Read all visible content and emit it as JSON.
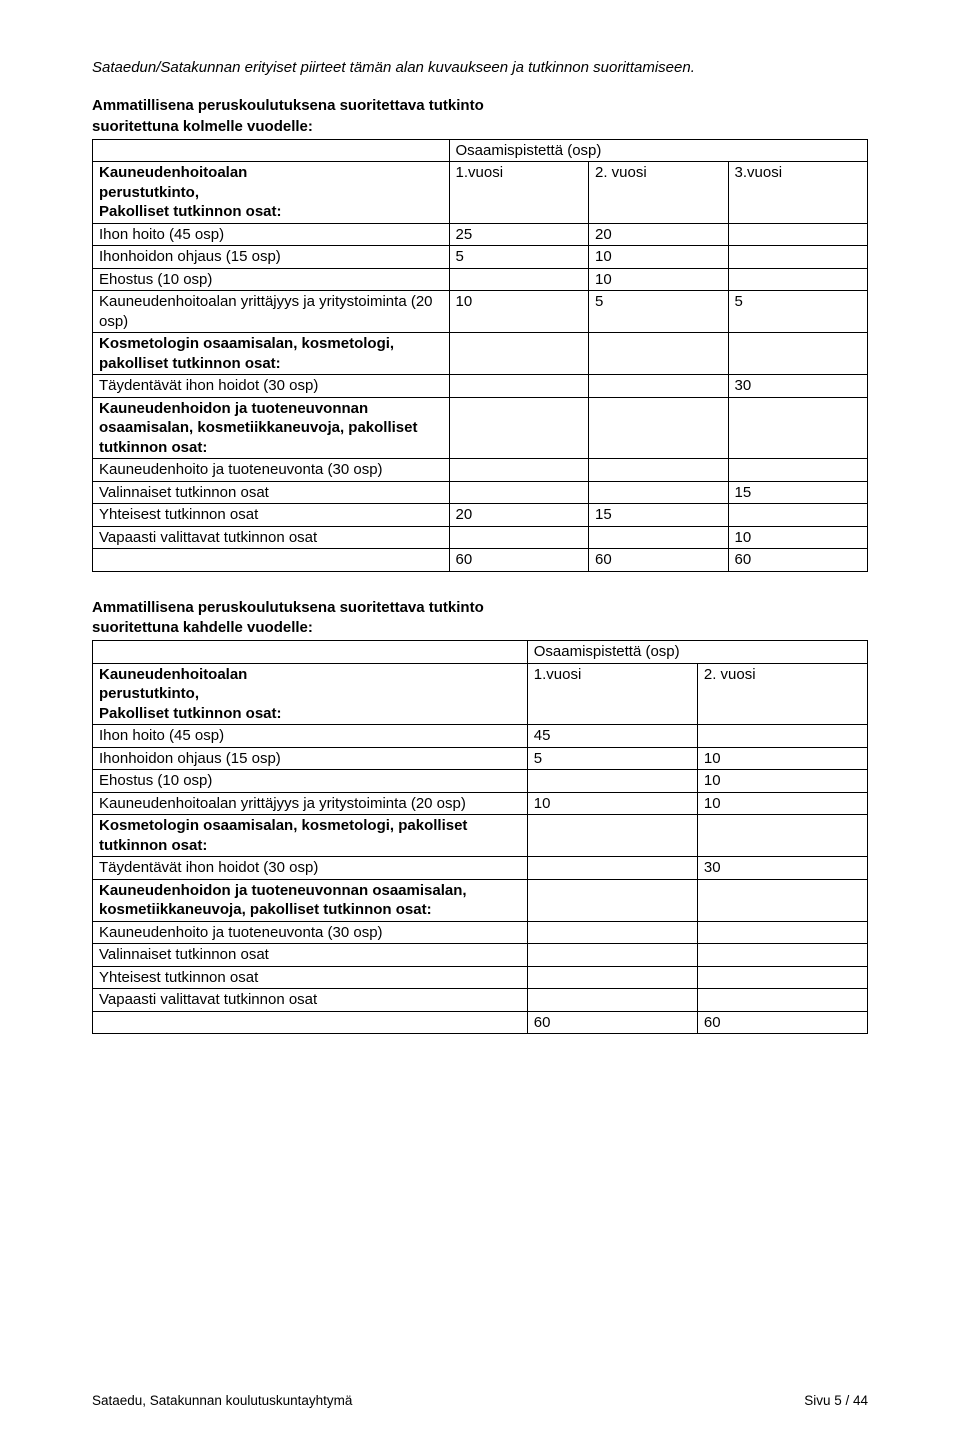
{
  "intro": "Sataedun/Satakunnan erityiset piirteet tämän alan kuvaukseen ja tutkinnon suorittamiseen.",
  "section1": {
    "heading_line1": "Ammatillisena peruskoulutuksena suoritettava tutkinto",
    "heading_line2": "suoritettuna kolmelle vuodelle:",
    "osp_header": "Osaamispistettä (osp)",
    "row_label_line1": "Kauneudenhoitoalan",
    "row_label_line2": "perustutkinto,",
    "row_label_line3": "Pakolliset tutkinnon osat:",
    "y1": "1.vuosi",
    "y2": "2. vuosi",
    "y3": "3.vuosi",
    "rows": {
      "r1": {
        "label": "Ihon hoito (45 osp)",
        "c1": "25",
        "c2": "20",
        "c3": ""
      },
      "r2": {
        "label": "Ihonhoidon ohjaus (15 osp)",
        "c1": "5",
        "c2": "10",
        "c3": ""
      },
      "r3": {
        "label": "Ehostus (10 osp)",
        "c1": "",
        "c2": "10",
        "c3": ""
      },
      "r4": {
        "label": "Kauneudenhoitoalan yrittäjyys ja yritystoiminta (20 osp)",
        "c1": "10",
        "c2": "5",
        "c3": "5"
      },
      "r5": {
        "label": "Kosmetologin osaamisalan, kosmetologi, pakolliset tutkinnon osat:"
      },
      "r6": {
        "label": "Täydentävät ihon hoidot (30 osp)",
        "c1": "",
        "c2": "",
        "c3": "30"
      },
      "r7": {
        "label": "Kauneudenhoidon ja tuoteneuvonnan osaamisalan, kosmetiikkaneuvoja, pakolliset tutkinnon osat:"
      },
      "r8": {
        "label": "Kauneudenhoito ja tuoteneuvonta (30 osp)"
      },
      "r9": {
        "label": "Valinnaiset tutkinnon osat",
        "c1": "",
        "c2": "",
        "c3": "15"
      },
      "r10": {
        "label": "Yhteisest tutkinnon osat",
        "c1": "20",
        "c2": "15",
        "c3": ""
      },
      "r11": {
        "label": "Vapaasti valittavat tutkinnon osat",
        "c1": "",
        "c2": "",
        "c3": "10"
      },
      "r12": {
        "c1": "60",
        "c2": "60",
        "c3": "60"
      }
    }
  },
  "section2": {
    "heading_line1": "Ammatillisena peruskoulutuksena suoritettava tutkinto",
    "heading_line2": "suoritettuna kahdelle vuodelle:",
    "osp_header": "Osaamispistettä (osp)",
    "row_label_line1": "Kauneudenhoitoalan",
    "row_label_line2": "perustutkinto,",
    "row_label_line3": "Pakolliset tutkinnon osat:",
    "y1": "1.vuosi",
    "y2": "2. vuosi",
    "rows": {
      "r1": {
        "label": "Ihon hoito (45 osp)",
        "c1": "45",
        "c2": ""
      },
      "r2": {
        "label": "Ihonhoidon ohjaus (15 osp)",
        "c1": "5",
        "c2": "10"
      },
      "r3": {
        "label": "Ehostus (10 osp)",
        "c1": "",
        "c2": "10"
      },
      "r4": {
        "label": "Kauneudenhoitoalan yrittäjyys ja yritystoiminta (20 osp)",
        "c1": "10",
        "c2": "10"
      },
      "r5": {
        "label": "Kosmetologin osaamisalan, kosmetologi, pakolliset tutkinnon osat:"
      },
      "r6": {
        "label": "Täydentävät ihon hoidot (30 osp)",
        "c1": "",
        "c2": "30"
      },
      "r7": {
        "label": "Kauneudenhoidon ja tuoteneuvonnan osaamisalan, kosmetiikkaneuvoja, pakolliset tutkinnon osat:"
      },
      "r8": {
        "label": "Kauneudenhoito ja tuoteneuvonta (30 osp)"
      },
      "r9": {
        "label": "Valinnaiset tutkinnon osat"
      },
      "r10": {
        "label": "Yhteisest tutkinnon osat"
      },
      "r11": {
        "label": "Vapaasti valittavat tutkinnon osat"
      },
      "r12": {
        "c1": "60",
        "c2": "60"
      }
    }
  },
  "footer": {
    "left": "Sataedu, Satakunnan koulutuskuntayhtymä",
    "right": "Sivu 5 / 44"
  }
}
